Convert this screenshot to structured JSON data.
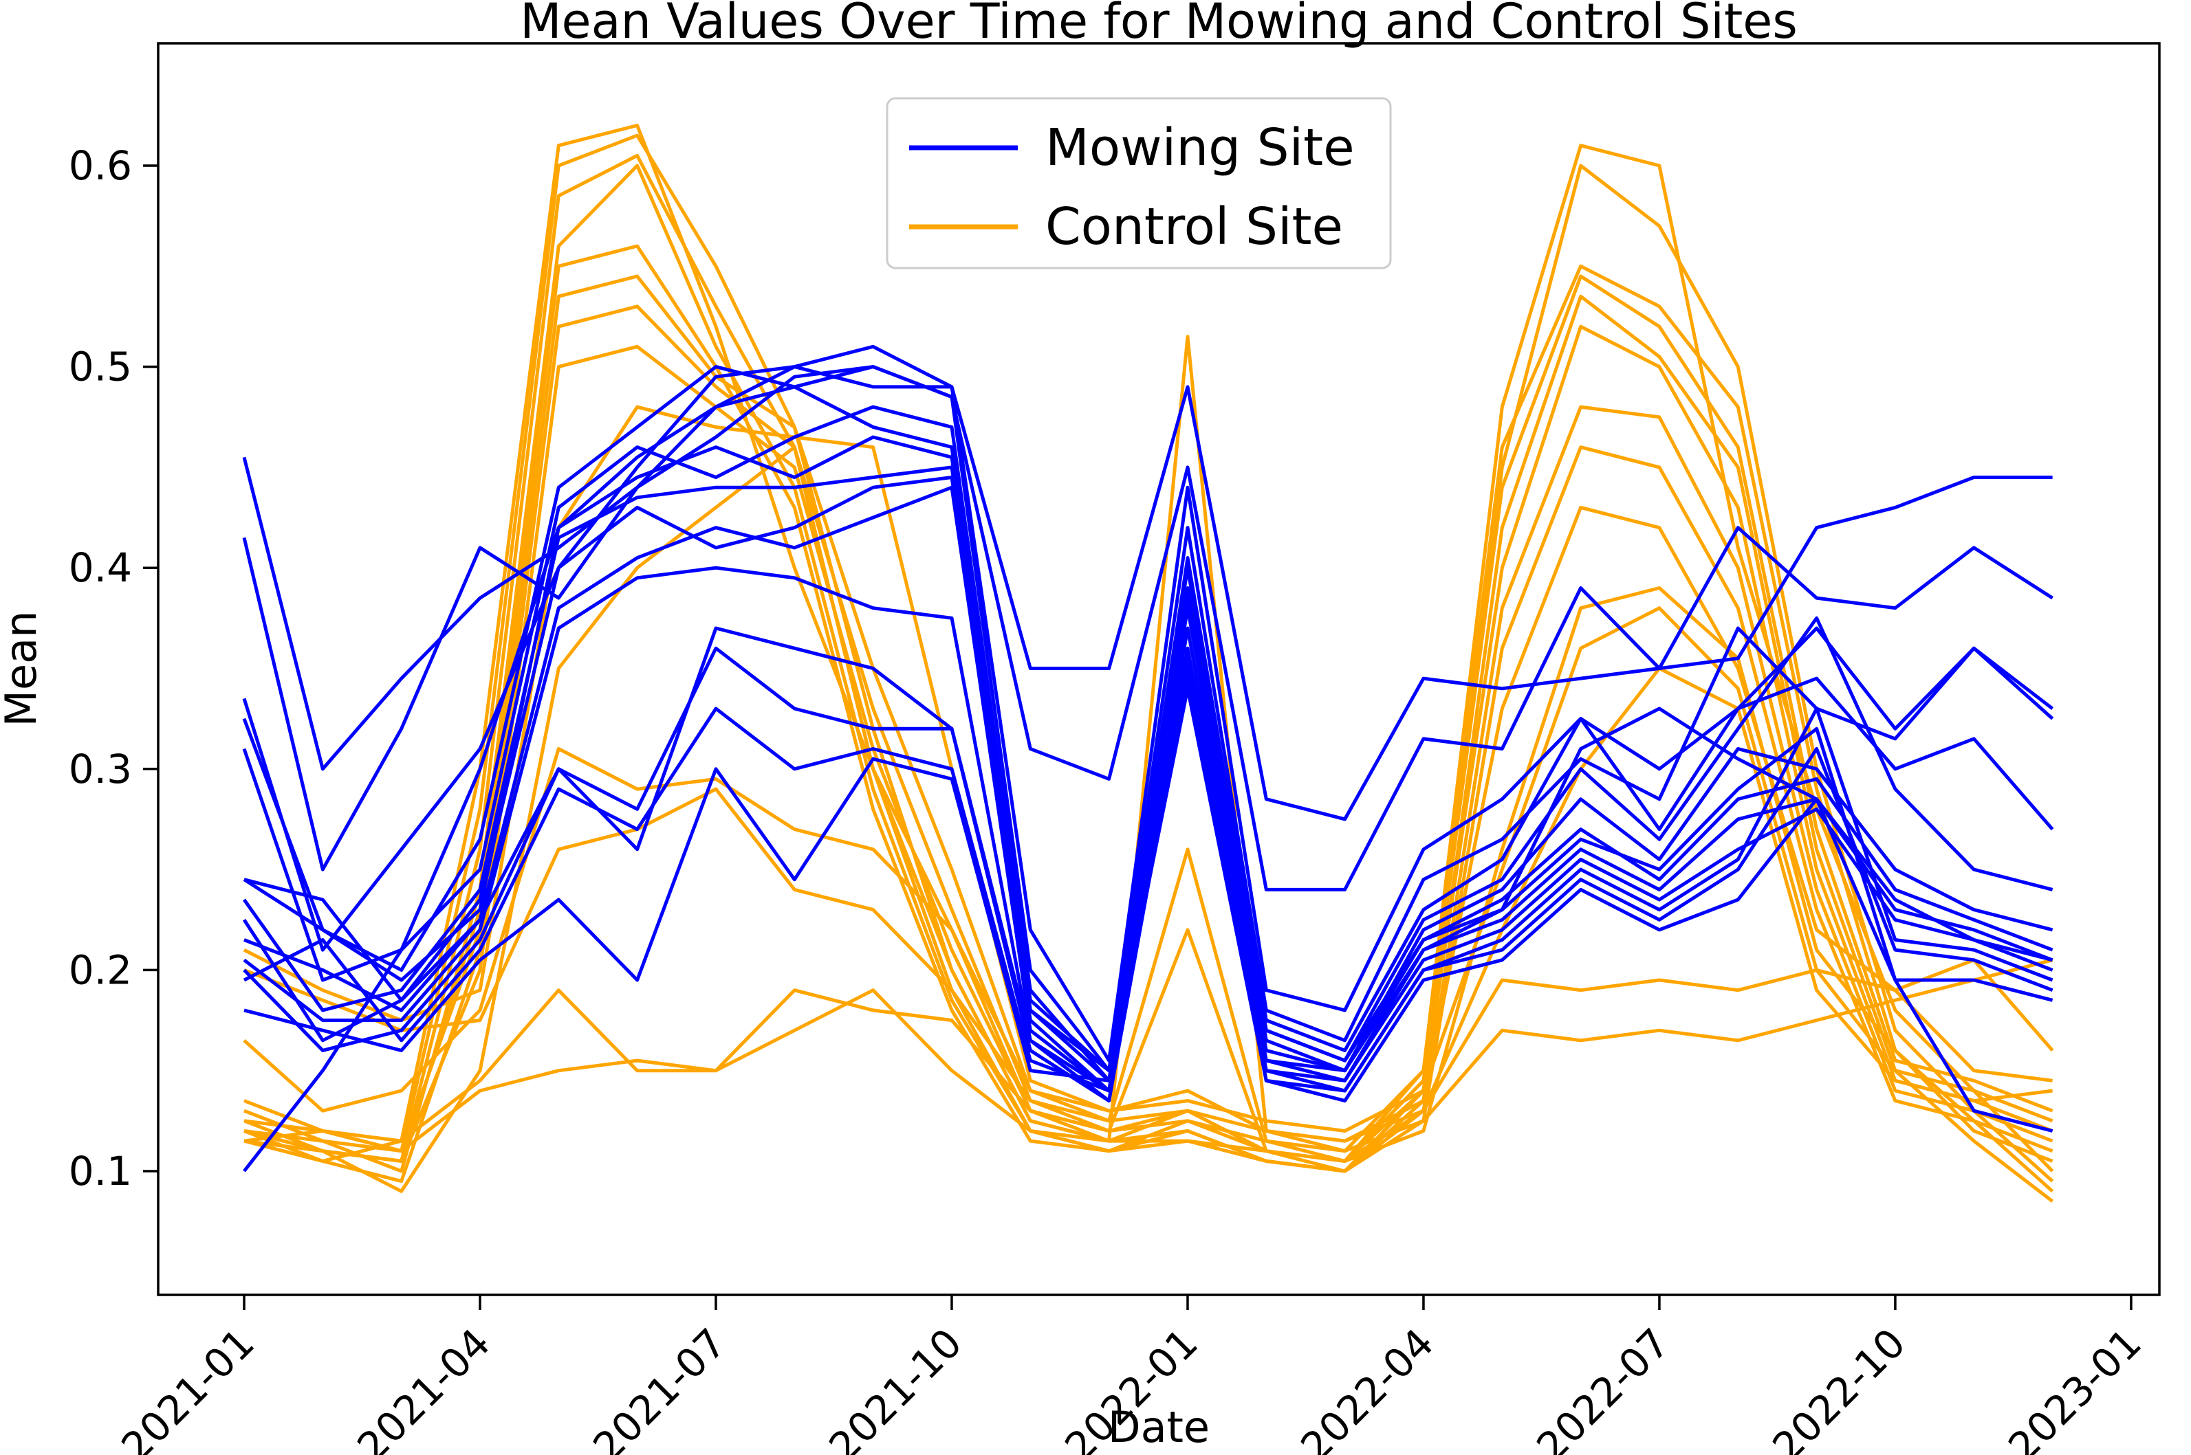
{
  "chart_data": {
    "type": "line",
    "title": "Mean Values Over Time for Mowing and Control Sites",
    "xlabel": "Date",
    "ylabel": "Mean",
    "grid": false,
    "legend_position": "upper center",
    "ylim": [
      0.04,
      0.66
    ],
    "y_ticks": [
      0.1,
      0.2,
      0.3,
      0.4,
      0.5,
      0.6
    ],
    "x_tick_labels": [
      "2021-01",
      "2021-04",
      "2021-07",
      "2021-10",
      "2022-01",
      "2022-04",
      "2022-07",
      "2022-10",
      "2023-01"
    ],
    "x_tick_month_index": [
      0,
      3,
      6,
      9,
      12,
      15,
      18,
      21,
      24
    ],
    "x_months": [
      "2021-01",
      "2021-02",
      "2021-03",
      "2021-04",
      "2021-05",
      "2021-06",
      "2021-07",
      "2021-08",
      "2021-09",
      "2021-10",
      "2021-11",
      "2021-12",
      "2022-01",
      "2022-02",
      "2022-03",
      "2022-04",
      "2022-05",
      "2022-06",
      "2022-07",
      "2022-08",
      "2022-09",
      "2022-10",
      "2022-11",
      "2022-12"
    ],
    "legend": [
      {
        "label": "Mowing Site",
        "color": "#0000ff"
      },
      {
        "label": "Control Site",
        "color": "#ffa500"
      }
    ],
    "series_groups": [
      {
        "name": "Control Site",
        "color": "#ffa500",
        "series": [
          [
            0.135,
            0.12,
            0.115,
            0.3,
            0.61,
            0.62,
            0.52,
            0.4,
            0.3,
            0.22,
            0.13,
            0.12,
            0.13,
            0.11,
            0.105,
            0.15,
            0.48,
            0.61,
            0.6,
            0.41,
            0.28,
            0.18,
            0.14,
            0.1
          ],
          [
            0.13,
            0.115,
            0.11,
            0.28,
            0.6,
            0.615,
            0.55,
            0.47,
            0.32,
            0.2,
            0.125,
            0.115,
            0.12,
            0.105,
            0.1,
            0.14,
            0.45,
            0.6,
            0.57,
            0.5,
            0.3,
            0.17,
            0.13,
            0.095
          ],
          [
            0.125,
            0.11,
            0.105,
            0.26,
            0.585,
            0.605,
            0.53,
            0.46,
            0.3,
            0.19,
            0.12,
            0.115,
            0.515,
            0.12,
            0.11,
            0.15,
            0.46,
            0.55,
            0.53,
            0.48,
            0.29,
            0.16,
            0.125,
            0.09
          ],
          [
            0.12,
            0.115,
            0.1,
            0.24,
            0.56,
            0.6,
            0.51,
            0.44,
            0.29,
            0.185,
            0.12,
            0.11,
            0.125,
            0.11,
            0.105,
            0.145,
            0.44,
            0.545,
            0.52,
            0.46,
            0.27,
            0.155,
            0.145,
            0.13
          ],
          [
            0.12,
            0.11,
            0.105,
            0.23,
            0.55,
            0.56,
            0.5,
            0.43,
            0.28,
            0.18,
            0.115,
            0.11,
            0.12,
            0.105,
            0.1,
            0.135,
            0.42,
            0.535,
            0.505,
            0.45,
            0.26,
            0.15,
            0.14,
            0.125
          ],
          [
            0.125,
            0.12,
            0.11,
            0.22,
            0.535,
            0.545,
            0.495,
            0.47,
            0.35,
            0.25,
            0.14,
            0.125,
            0.26,
            0.115,
            0.105,
            0.14,
            0.4,
            0.52,
            0.5,
            0.43,
            0.25,
            0.145,
            0.135,
            0.12
          ],
          [
            0.115,
            0.105,
            0.095,
            0.21,
            0.52,
            0.53,
            0.49,
            0.46,
            0.33,
            0.23,
            0.135,
            0.12,
            0.22,
            0.11,
            0.1,
            0.13,
            0.38,
            0.48,
            0.475,
            0.4,
            0.24,
            0.14,
            0.13,
            0.115
          ],
          [
            0.12,
            0.11,
            0.105,
            0.2,
            0.5,
            0.51,
            0.48,
            0.45,
            0.31,
            0.21,
            0.13,
            0.115,
            0.115,
            0.105,
            0.1,
            0.125,
            0.36,
            0.46,
            0.45,
            0.38,
            0.23,
            0.135,
            0.125,
            0.11
          ],
          [
            0.21,
            0.19,
            0.175,
            0.19,
            0.42,
            0.48,
            0.47,
            0.465,
            0.46,
            0.3,
            0.145,
            0.13,
            0.14,
            0.12,
            0.115,
            0.135,
            0.33,
            0.43,
            0.42,
            0.35,
            0.22,
            0.19,
            0.15,
            0.145
          ],
          [
            0.115,
            0.11,
            0.09,
            0.15,
            0.35,
            0.4,
            0.43,
            0.46,
            0.3,
            0.2,
            0.125,
            0.115,
            0.13,
            0.11,
            0.105,
            0.12,
            0.26,
            0.38,
            0.39,
            0.355,
            0.21,
            0.16,
            0.12,
            0.105
          ],
          [
            0.165,
            0.13,
            0.14,
            0.18,
            0.31,
            0.29,
            0.295,
            0.27,
            0.26,
            0.22,
            0.14,
            0.13,
            0.135,
            0.125,
            0.12,
            0.14,
            0.25,
            0.36,
            0.38,
            0.34,
            0.2,
            0.15,
            0.115,
            0.085
          ],
          [
            0.12,
            0.105,
            0.115,
            0.145,
            0.19,
            0.15,
            0.15,
            0.17,
            0.19,
            0.15,
            0.12,
            0.11,
            0.115,
            0.11,
            0.105,
            0.13,
            0.195,
            0.19,
            0.195,
            0.19,
            0.2,
            0.19,
            0.205,
            0.16
          ],
          [
            0.115,
            0.12,
            0.11,
            0.14,
            0.15,
            0.155,
            0.15,
            0.19,
            0.18,
            0.175,
            0.13,
            0.12,
            0.125,
            0.115,
            0.11,
            0.125,
            0.17,
            0.165,
            0.17,
            0.165,
            0.175,
            0.185,
            0.195,
            0.205
          ],
          [
            0.2,
            0.185,
            0.17,
            0.175,
            0.26,
            0.27,
            0.29,
            0.24,
            0.23,
            0.19,
            0.135,
            0.125,
            0.13,
            0.12,
            0.115,
            0.13,
            0.22,
            0.3,
            0.35,
            0.33,
            0.19,
            0.145,
            0.135,
            0.14
          ]
        ]
      },
      {
        "name": "Mowing Site",
        "color": "#0000ff",
        "series": [
          [
            0.455,
            0.3,
            0.345,
            0.385,
            0.41,
            0.44,
            0.48,
            0.5,
            0.51,
            0.49,
            0.35,
            0.35,
            0.49,
            0.285,
            0.275,
            0.345,
            0.34,
            0.345,
            0.35,
            0.355,
            0.42,
            0.43,
            0.445,
            0.445
          ],
          [
            0.415,
            0.25,
            0.32,
            0.41,
            0.385,
            0.44,
            0.465,
            0.495,
            0.5,
            0.485,
            0.31,
            0.295,
            0.45,
            0.24,
            0.24,
            0.315,
            0.31,
            0.39,
            0.35,
            0.42,
            0.385,
            0.38,
            0.41,
            0.385
          ],
          [
            0.335,
            0.21,
            0.26,
            0.31,
            0.4,
            0.45,
            0.495,
            0.5,
            0.49,
            0.49,
            0.22,
            0.155,
            0.44,
            0.19,
            0.18,
            0.26,
            0.285,
            0.325,
            0.3,
            0.33,
            0.37,
            0.32,
            0.36,
            0.33
          ],
          [
            0.325,
            0.22,
            0.2,
            0.265,
            0.44,
            0.47,
            0.5,
            0.49,
            0.5,
            0.485,
            0.2,
            0.15,
            0.42,
            0.18,
            0.165,
            0.245,
            0.265,
            0.305,
            0.285,
            0.37,
            0.33,
            0.315,
            0.36,
            0.325
          ],
          [
            0.31,
            0.195,
            0.21,
            0.25,
            0.43,
            0.46,
            0.445,
            0.465,
            0.48,
            0.47,
            0.19,
            0.145,
            0.405,
            0.175,
            0.16,
            0.23,
            0.255,
            0.325,
            0.27,
            0.33,
            0.345,
            0.3,
            0.315,
            0.27
          ],
          [
            0.245,
            0.22,
            0.195,
            0.23,
            0.42,
            0.445,
            0.46,
            0.445,
            0.465,
            0.455,
            0.185,
            0.15,
            0.4,
            0.17,
            0.155,
            0.225,
            0.245,
            0.3,
            0.265,
            0.32,
            0.375,
            0.29,
            0.25,
            0.24
          ],
          [
            0.235,
            0.18,
            0.19,
            0.24,
            0.415,
            0.435,
            0.44,
            0.44,
            0.445,
            0.45,
            0.18,
            0.145,
            0.39,
            0.165,
            0.15,
            0.22,
            0.24,
            0.285,
            0.255,
            0.31,
            0.3,
            0.25,
            0.23,
            0.22
          ],
          [
            0.225,
            0.165,
            0.185,
            0.235,
            0.4,
            0.43,
            0.41,
            0.42,
            0.44,
            0.445,
            0.175,
            0.14,
            0.38,
            0.16,
            0.15,
            0.215,
            0.235,
            0.27,
            0.245,
            0.285,
            0.295,
            0.24,
            0.225,
            0.21
          ],
          [
            0.215,
            0.2,
            0.18,
            0.225,
            0.38,
            0.405,
            0.42,
            0.41,
            0.425,
            0.44,
            0.17,
            0.14,
            0.37,
            0.155,
            0.145,
            0.21,
            0.225,
            0.26,
            0.24,
            0.275,
            0.285,
            0.23,
            0.22,
            0.205
          ],
          [
            0.205,
            0.175,
            0.175,
            0.22,
            0.37,
            0.395,
            0.4,
            0.395,
            0.38,
            0.375,
            0.165,
            0.135,
            0.355,
            0.15,
            0.145,
            0.205,
            0.22,
            0.255,
            0.235,
            0.26,
            0.28,
            0.225,
            0.215,
            0.2
          ],
          [
            0.2,
            0.16,
            0.17,
            0.215,
            0.3,
            0.28,
            0.36,
            0.33,
            0.32,
            0.32,
            0.16,
            0.135,
            0.35,
            0.15,
            0.14,
            0.2,
            0.215,
            0.25,
            0.23,
            0.255,
            0.33,
            0.215,
            0.21,
            0.195
          ],
          [
            0.195,
            0.215,
            0.165,
            0.21,
            0.29,
            0.27,
            0.33,
            0.3,
            0.31,
            0.3,
            0.155,
            0.14,
            0.345,
            0.145,
            0.14,
            0.2,
            0.21,
            0.245,
            0.225,
            0.25,
            0.31,
            0.21,
            0.205,
            0.19
          ],
          [
            0.18,
            0.17,
            0.16,
            0.205,
            0.235,
            0.195,
            0.3,
            0.245,
            0.305,
            0.295,
            0.15,
            0.145,
            0.34,
            0.145,
            0.135,
            0.195,
            0.205,
            0.24,
            0.22,
            0.235,
            0.285,
            0.195,
            0.195,
            0.185
          ],
          [
            0.1,
            0.15,
            0.21,
            0.3,
            0.42,
            0.455,
            0.48,
            0.49,
            0.47,
            0.46,
            0.18,
            0.15,
            0.385,
            0.17,
            0.155,
            0.215,
            0.23,
            0.265,
            0.25,
            0.29,
            0.32,
            0.195,
            0.13,
            0.12
          ],
          [
            0.245,
            0.235,
            0.185,
            0.225,
            0.3,
            0.26,
            0.37,
            0.36,
            0.35,
            0.32,
            0.165,
            0.14,
            0.36,
            0.155,
            0.15,
            0.21,
            0.23,
            0.31,
            0.33,
            0.305,
            0.285,
            0.235,
            0.215,
            0.205
          ]
        ]
      }
    ]
  }
}
